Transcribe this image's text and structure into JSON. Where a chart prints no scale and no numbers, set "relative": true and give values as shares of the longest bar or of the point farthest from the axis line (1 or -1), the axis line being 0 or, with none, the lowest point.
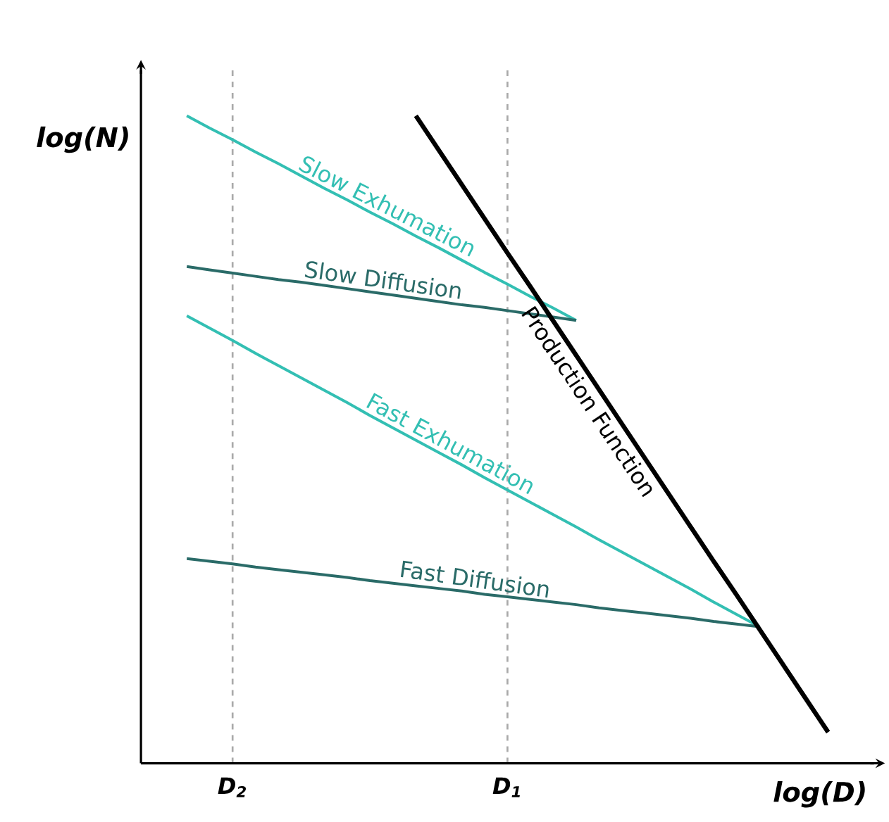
{
  "chart_data": {
    "type": "line",
    "relative": true,
    "xlabel": "log(D)",
    "ylabel": "log(N)",
    "categories": [
      null,
      null,
      null,
      null,
      "D$_{2}$",
      null,
      null,
      null,
      null,
      null,
      null,
      null,
      null,
      null,
      null,
      null,
      "D$_{1}$",
      null,
      null,
      null,
      null,
      null,
      null,
      null,
      null,
      null,
      null,
      null,
      null,
      null,
      null,
      null,
      null
    ],
    "grid": "x",
    "marker": "none",
    "line_style": "solid",
    "series": [
      {
        "name": "Slow Exhumation",
        "color": "#33bfb3",
        "values": [
          null,
          null,
          1.0,
          0.981,
          0.963,
          0.944,
          0.926,
          0.907,
          0.888,
          0.87,
          0.851,
          0.833,
          0.814,
          0.796,
          0.777,
          0.758,
          0.74,
          0.721,
          0.703,
          0.684,
          null,
          null,
          null,
          null,
          null,
          null,
          null,
          null,
          null,
          null,
          null,
          null,
          null
        ]
      },
      {
        "name": "Slow Diffusion",
        "color": "#2a6b68",
        "values": [
          null,
          null,
          0.767,
          0.762,
          0.757,
          0.752,
          0.747,
          0.743,
          0.738,
          0.733,
          0.728,
          0.723,
          0.718,
          0.713,
          0.708,
          0.704,
          0.699,
          0.694,
          0.689,
          0.684,
          null,
          null,
          null,
          null,
          null,
          null,
          null,
          null,
          null,
          null,
          null,
          null,
          null
        ]
      },
      {
        "name": "Fast Exhumation",
        "color": "#33bfb3",
        "values": [
          null,
          null,
          0.691,
          0.672,
          0.653,
          0.633,
          0.614,
          0.595,
          0.576,
          0.557,
          0.537,
          0.518,
          0.499,
          0.48,
          0.461,
          0.441,
          0.422,
          0.403,
          0.384,
          0.365,
          0.345,
          0.326,
          0.307,
          0.288,
          0.269,
          0.249,
          0.23,
          0.211,
          null,
          null,
          null,
          null,
          null
        ]
      },
      {
        "name": "Fast Diffusion",
        "color": "#2a6b68",
        "values": [
          null,
          null,
          0.316,
          0.312,
          0.308,
          0.303,
          0.299,
          0.295,
          0.291,
          0.287,
          0.282,
          0.278,
          0.274,
          0.27,
          0.266,
          0.261,
          0.257,
          0.253,
          0.249,
          0.245,
          0.24,
          0.236,
          0.232,
          0.228,
          0.224,
          0.219,
          0.215,
          0.211,
          null,
          null,
          null,
          null,
          null
        ]
      },
      {
        "name": "Production Function",
        "color": "#000000",
        "values": [
          null,
          null,
          null,
          null,
          null,
          null,
          null,
          null,
          null,
          null,
          null,
          null,
          1.0,
          0.947,
          0.894,
          0.841,
          0.788,
          0.736,
          0.683,
          0.63,
          0.577,
          0.524,
          0.471,
          0.418,
          0.365,
          0.312,
          0.26,
          0.207,
          0.154,
          0.101,
          0.048,
          null,
          null
        ]
      }
    ]
  }
}
